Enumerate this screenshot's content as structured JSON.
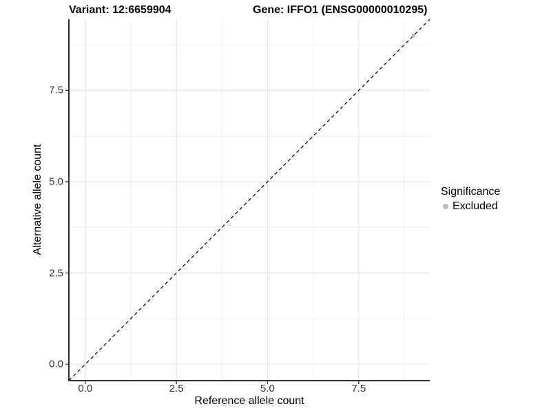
{
  "header": {
    "variant_title": "Variant: 12:6659904",
    "gene_title": "Gene: IFFO1 (ENSG00000010295)"
  },
  "chart_data": {
    "type": "scatter",
    "xlabel": "Reference allele count",
    "ylabel": "Alternative allele count",
    "xlim": [
      -0.45,
      9.45
    ],
    "ylim": [
      -0.45,
      9.45
    ],
    "x_ticks": {
      "values": [
        0,
        2.5,
        5,
        7.5
      ],
      "labels": [
        "0.0",
        "2.5",
        "5.0",
        "7.5"
      ]
    },
    "y_ticks": {
      "values": [
        0,
        2.5,
        5,
        7.5
      ],
      "labels": [
        "0.0",
        "2.5",
        "5.0",
        "7.5"
      ]
    },
    "minor_tick_values": [
      1.25,
      3.75,
      6.25,
      8.75
    ],
    "grid": "major+minor",
    "identity_line": {
      "slope": 1,
      "intercept": 0,
      "style": "dashed",
      "color": "#000000"
    },
    "series": [
      {
        "name": "Excluded",
        "color": "#bebebe",
        "points": [
          {
            "x": 9,
            "y": 9
          }
        ]
      }
    ],
    "legend": {
      "title": "Significance",
      "position": "right",
      "entries": [
        {
          "label": "Excluded",
          "color": "#bebebe"
        }
      ]
    }
  },
  "colors": {
    "background": "#ffffff",
    "grid_major": "#e3e3e3",
    "grid_minor": "#f1f1f1",
    "axis_line": "#2f2f2f",
    "tick_label": "#333333",
    "text": "#000000"
  }
}
